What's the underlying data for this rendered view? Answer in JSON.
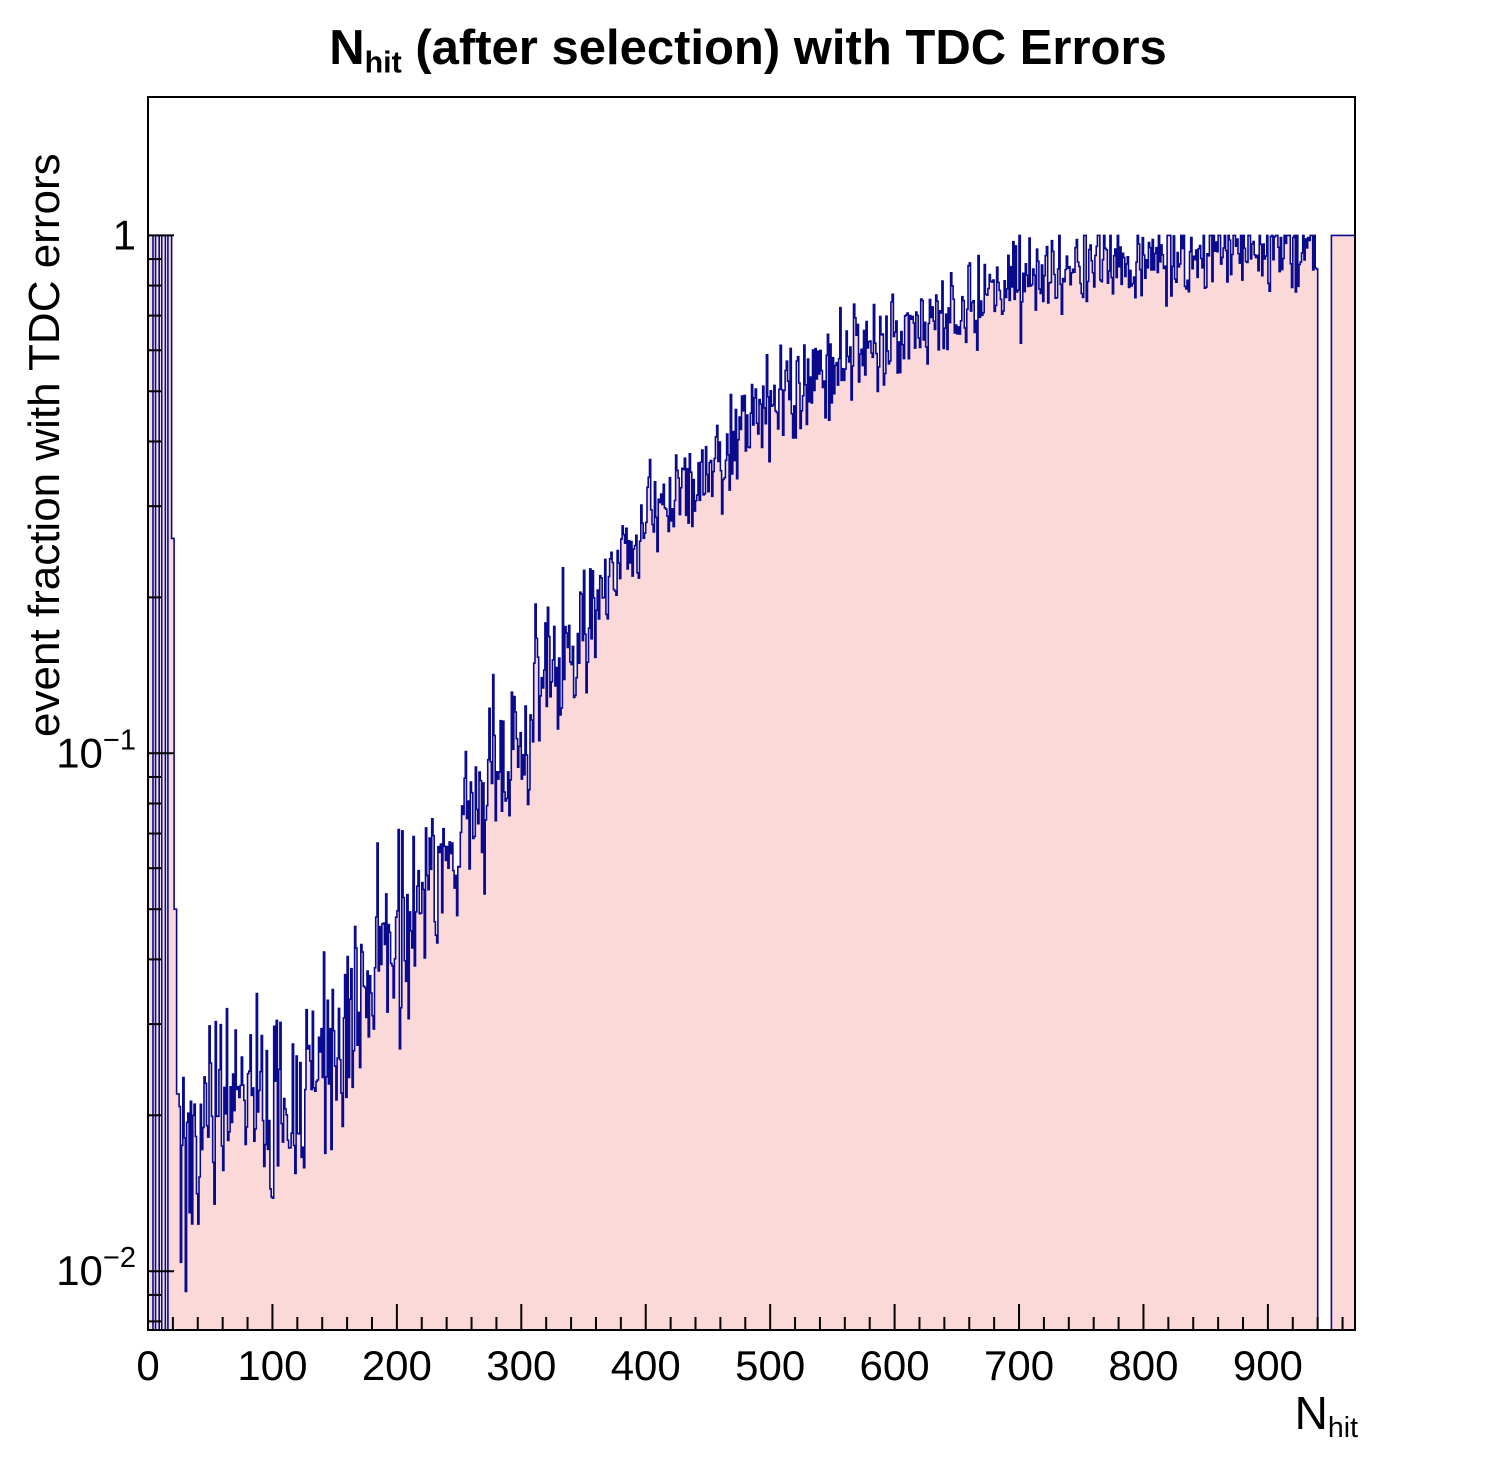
{
  "chart_data": {
    "type": "histogram",
    "title_parts": [
      {
        "text": "N"
      },
      {
        "text": "hit",
        "sub": true
      },
      {
        "text": " (after selection) with TDC Errors"
      }
    ],
    "ylabel": "event fraction with TDC errors",
    "xlabel_parts": [
      {
        "text": "N"
      },
      {
        "text": "hit",
        "sub": true
      }
    ],
    "x_range": [
      0,
      970
    ],
    "y_range": [
      0.0077,
      1.85
    ],
    "y_scale": "log",
    "bin_width": 1,
    "fill_color": "#fbd9d9",
    "line_color": "#0a0a8f",
    "frame_color": "#000000",
    "segments": [
      {
        "x0": 0,
        "x1": 4,
        "v": 1.0
      },
      {
        "x0": 4,
        "x1": 6,
        "v": 0.004
      },
      {
        "x0": 6,
        "x1": 9,
        "v": 1.0
      },
      {
        "x0": 9,
        "x1": 11,
        "v": 0.004
      },
      {
        "x0": 11,
        "x1": 14,
        "v": 1.0
      },
      {
        "x0": 14,
        "x1": 16,
        "v": 0.004
      },
      {
        "x0": 16,
        "x1": 19,
        "v": 1.0
      },
      {
        "x0": 19,
        "x1": 21,
        "v": 0.26
      },
      {
        "x0": 21,
        "x1": 23,
        "v": 0.05
      },
      {
        "x0": 23,
        "x1": 25,
        "v": 0.022
      },
      {
        "x0": 940,
        "x1": 951,
        "v": 0
      },
      {
        "x0": 951,
        "x1": 970,
        "v": 1.0
      }
    ],
    "trend_anchors": [
      [
        25,
        0.0175
      ],
      [
        35,
        0.0165
      ],
      [
        50,
        0.019
      ],
      [
        70,
        0.02
      ],
      [
        90,
        0.0205
      ],
      [
        110,
        0.021
      ],
      [
        130,
        0.024
      ],
      [
        150,
        0.028
      ],
      [
        170,
        0.033
      ],
      [
        190,
        0.04
      ],
      [
        210,
        0.048
      ],
      [
        230,
        0.058
      ],
      [
        250,
        0.07
      ],
      [
        270,
        0.085
      ],
      [
        290,
        0.103
      ],
      [
        310,
        0.125
      ],
      [
        330,
        0.15
      ],
      [
        350,
        0.18
      ],
      [
        370,
        0.215
      ],
      [
        390,
        0.25
      ],
      [
        410,
        0.285
      ],
      [
        430,
        0.32
      ],
      [
        450,
        0.355
      ],
      [
        470,
        0.39
      ],
      [
        490,
        0.43
      ],
      [
        510,
        0.47
      ],
      [
        530,
        0.515
      ],
      [
        550,
        0.555
      ],
      [
        570,
        0.595
      ],
      [
        590,
        0.63
      ],
      [
        610,
        0.66
      ],
      [
        630,
        0.69
      ],
      [
        650,
        0.72
      ],
      [
        670,
        0.75
      ],
      [
        690,
        0.78
      ],
      [
        710,
        0.81
      ],
      [
        730,
        0.84
      ],
      [
        750,
        0.865
      ],
      [
        770,
        0.885
      ],
      [
        790,
        0.905
      ],
      [
        810,
        0.92
      ],
      [
        830,
        0.932
      ],
      [
        850,
        0.944
      ],
      [
        870,
        0.954
      ],
      [
        890,
        0.962
      ],
      [
        910,
        0.968
      ],
      [
        925,
        0.97
      ],
      [
        940,
        0.97
      ]
    ],
    "noise": {
      "seed": 42,
      "sigma_levels": [
        [
          0.05,
          0.1
        ],
        [
          0.2,
          0.075
        ],
        [
          0.5,
          0.055
        ],
        [
          2,
          0.042
        ]
      ]
    },
    "x_axis": {
      "ticks": [
        0,
        100,
        200,
        300,
        400,
        500,
        600,
        700,
        800,
        900
      ],
      "labels": [
        "0",
        "100",
        "200",
        "300",
        "400",
        "500",
        "600",
        "700",
        "800",
        "900"
      ],
      "minor_step": 20
    },
    "y_axis": {
      "ticks": [
        {
          "v": 1,
          "base": "1",
          "exp": ""
        },
        {
          "v": 0.1,
          "base": "10",
          "exp": "−1"
        },
        {
          "v": 0.01,
          "base": "10",
          "exp": "−2"
        }
      ]
    }
  }
}
